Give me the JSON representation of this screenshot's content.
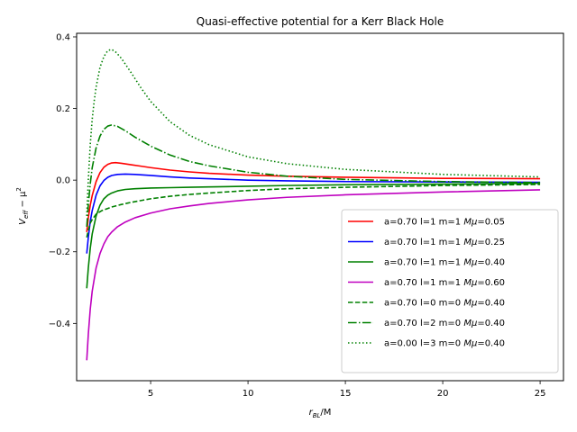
{
  "chart_data": {
    "type": "line",
    "title": "Quasi-effective potential for a Kerr Black Hole",
    "xlabel": {
      "base": "r",
      "sub": "BL",
      "suffix": "/M"
    },
    "ylabel": {
      "base": "V",
      "sub": "eff",
      "mid": " − μ",
      "sup": "2"
    },
    "xlim": [
      1.2,
      26.2
    ],
    "ylim": [
      -0.56,
      0.41
    ],
    "xticks": [
      5,
      10,
      15,
      20,
      25
    ],
    "xtick_labels": [
      "5",
      "10",
      "15",
      "20",
      "25"
    ],
    "yticks": [
      -0.4,
      -0.2,
      0.0,
      0.2,
      0.4
    ],
    "ytick_labels": [
      "−0.4",
      "−0.2",
      "0.0",
      "0.2",
      "0.4"
    ],
    "grid": false,
    "legend_position": "lower-right",
    "series": [
      {
        "name": "a=0.70 l=1 m=1 Mμ=0.05",
        "name_parts": [
          "a=0.70 l=1 m=1 ",
          "Mμ",
          "=0.05"
        ],
        "color": "#ff0000",
        "dash": "solid",
        "x": [
          1.72,
          1.8,
          1.9,
          2.0,
          2.2,
          2.4,
          2.6,
          2.8,
          3.0,
          3.2,
          3.5,
          4.0,
          4.5,
          5.0,
          6.0,
          7.0,
          8.0,
          10.0,
          12.0,
          15.0,
          20.0,
          25.0
        ],
        "y": [
          -0.145,
          -0.105,
          -0.07,
          -0.043,
          -0.004,
          0.021,
          0.036,
          0.044,
          0.048,
          0.049,
          0.047,
          0.043,
          0.039,
          0.035,
          0.028,
          0.023,
          0.019,
          0.014,
          0.011,
          0.008,
          0.005,
          0.004
        ]
      },
      {
        "name": "a=0.70 l=1 m=1 Mμ=0.25",
        "name_parts": [
          "a=0.70 l=1 m=1 ",
          "Mμ",
          "=0.25"
        ],
        "color": "#0000ff",
        "dash": "solid",
        "x": [
          1.72,
          1.8,
          1.9,
          2.0,
          2.2,
          2.4,
          2.6,
          2.8,
          3.0,
          3.3,
          3.7,
          4.2,
          5.0,
          6.0,
          7.0,
          8.0,
          10.0,
          12.0,
          15.0,
          20.0,
          25.0
        ],
        "y": [
          -0.205,
          -0.16,
          -0.115,
          -0.085,
          -0.042,
          -0.016,
          -0.001,
          0.008,
          0.013,
          0.016,
          0.017,
          0.016,
          0.013,
          0.009,
          0.006,
          0.004,
          0.0,
          -0.002,
          -0.004,
          -0.005,
          -0.006
        ]
      },
      {
        "name": "a=0.70 l=1 m=1 Mμ=0.40",
        "name_parts": [
          "a=0.70 l=1 m=1 ",
          "Mμ",
          "=0.40"
        ],
        "color": "#008000",
        "dash": "solid",
        "x": [
          1.72,
          1.8,
          1.9,
          2.0,
          2.2,
          2.4,
          2.6,
          2.8,
          3.0,
          3.3,
          3.7,
          4.2,
          5.0,
          6.0,
          7.0,
          8.0,
          10.0,
          12.0,
          15.0,
          20.0,
          25.0
        ],
        "y": [
          -0.302,
          -0.245,
          -0.19,
          -0.15,
          -0.1,
          -0.07,
          -0.052,
          -0.042,
          -0.036,
          -0.03,
          -0.026,
          -0.024,
          -0.022,
          -0.021,
          -0.02,
          -0.019,
          -0.017,
          -0.015,
          -0.013,
          -0.011,
          -0.009
        ]
      },
      {
        "name": "a=0.70 l=1 m=1 Mμ=0.60",
        "name_parts": [
          "a=0.70 l=1 m=1 ",
          "Mμ",
          "=0.60"
        ],
        "color": "#bf00bf",
        "dash": "solid",
        "x": [
          1.72,
          1.8,
          1.9,
          2.0,
          2.2,
          2.4,
          2.6,
          2.8,
          3.0,
          3.3,
          3.7,
          4.2,
          5.0,
          6.0,
          7.0,
          8.0,
          10.0,
          12.0,
          15.0,
          20.0,
          25.0
        ],
        "y": [
          -0.503,
          -0.43,
          -0.36,
          -0.31,
          -0.245,
          -0.205,
          -0.178,
          -0.158,
          -0.145,
          -0.13,
          -0.117,
          -0.105,
          -0.092,
          -0.08,
          -0.072,
          -0.065,
          -0.055,
          -0.048,
          -0.041,
          -0.033,
          -0.027
        ]
      },
      {
        "name": "a=0.70 l=0 m=0 Mμ=0.40",
        "name_parts": [
          "a=0.70 l=0 m=0 ",
          "Mμ",
          "=0.40"
        ],
        "color": "#008000",
        "dash": "dashed",
        "x": [
          1.72,
          1.8,
          1.9,
          2.0,
          2.2,
          2.5,
          3.0,
          3.5,
          4.0,
          5.0,
          6.0,
          7.0,
          8.0,
          10.0,
          12.0,
          15.0,
          20.0,
          25.0
        ],
        "y": [
          -0.16,
          -0.14,
          -0.12,
          -0.11,
          -0.095,
          -0.085,
          -0.075,
          -0.068,
          -0.062,
          -0.052,
          -0.045,
          -0.04,
          -0.036,
          -0.029,
          -0.024,
          -0.02,
          -0.015,
          -0.012
        ]
      },
      {
        "name": "a=0.70 l=2 m=0 Mμ=0.40",
        "name_parts": [
          "a=0.70 l=2 m=0 ",
          "Mμ",
          "=0.40"
        ],
        "color": "#008000",
        "dash": "dashdot",
        "x": [
          1.72,
          1.8,
          1.9,
          2.0,
          2.2,
          2.4,
          2.6,
          2.8,
          3.0,
          3.3,
          3.7,
          4.2,
          5.0,
          6.0,
          7.0,
          8.0,
          10.0,
          12.0,
          15.0,
          20.0,
          25.0
        ],
        "y": [
          -0.13,
          -0.07,
          -0.01,
          0.035,
          0.09,
          0.123,
          0.142,
          0.151,
          0.154,
          0.15,
          0.138,
          0.12,
          0.095,
          0.07,
          0.052,
          0.04,
          0.022,
          0.011,
          0.002,
          -0.004,
          -0.007
        ]
      },
      {
        "name": "a=0.00 l=3 m=0 Mμ=0.40",
        "name_parts": [
          "a=0.00 l=3 m=0 ",
          "Mμ",
          "=0.40"
        ],
        "color": "#008000",
        "dash": "dotted",
        "x": [
          1.72,
          1.8,
          1.9,
          2.0,
          2.1,
          2.2,
          2.4,
          2.6,
          2.8,
          3.0,
          3.2,
          3.5,
          4.0,
          4.5,
          5.0,
          6.0,
          7.0,
          8.0,
          10.0,
          12.0,
          15.0,
          20.0,
          25.0
        ],
        "y": [
          -0.1,
          0.0,
          0.1,
          0.17,
          0.22,
          0.26,
          0.315,
          0.345,
          0.362,
          0.365,
          0.358,
          0.34,
          0.3,
          0.258,
          0.22,
          0.163,
          0.125,
          0.099,
          0.065,
          0.046,
          0.03,
          0.016,
          0.009
        ]
      }
    ]
  }
}
